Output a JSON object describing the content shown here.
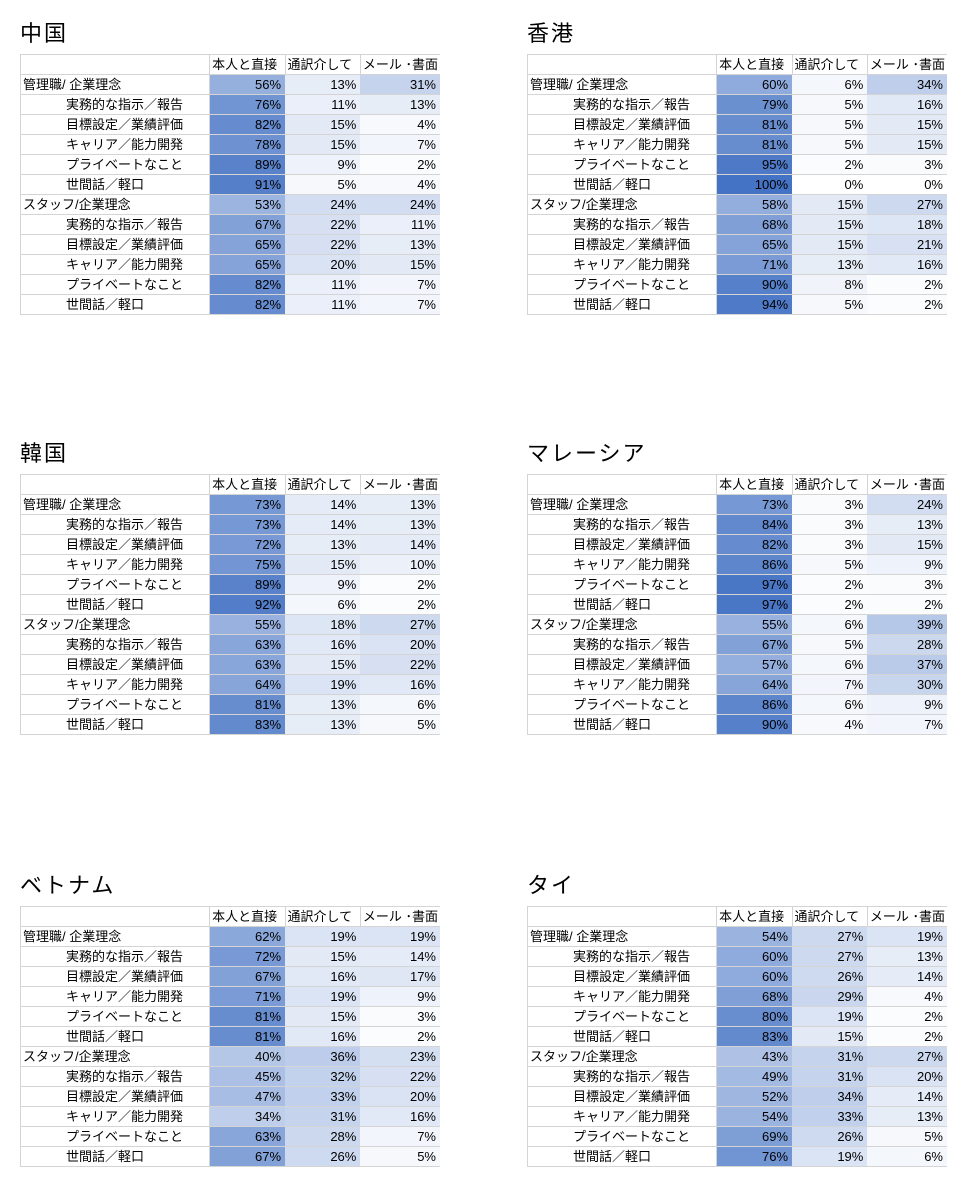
{
  "headers": [
    "",
    "本人と直接",
    "通訳介して",
    "メール ･書面"
  ],
  "colors": {
    "low": "#ffffff",
    "high": "#4472c4"
  },
  "chart_data": [
    {
      "type": "heatmap",
      "title": "中国",
      "rows": [
        {
          "label": "管理職/ 企業理念",
          "sub": false,
          "values": [
            56,
            13,
            31
          ]
        },
        {
          "label": "実務的な指示／報告",
          "sub": true,
          "values": [
            76,
            11,
            13
          ]
        },
        {
          "label": "目標設定／業績評価",
          "sub": true,
          "values": [
            82,
            15,
            4
          ]
        },
        {
          "label": "キャリア／能力開発",
          "sub": true,
          "values": [
            78,
            15,
            7
          ]
        },
        {
          "label": "プライベートなこと",
          "sub": true,
          "values": [
            89,
            9,
            2
          ]
        },
        {
          "label": "世間話／軽口",
          "sub": true,
          "values": [
            91,
            5,
            4
          ]
        },
        {
          "label": "スタッフ/企業理念",
          "sub": false,
          "values": [
            53,
            24,
            24
          ]
        },
        {
          "label": "実務的な指示／報告",
          "sub": true,
          "values": [
            67,
            22,
            11
          ]
        },
        {
          "label": "目標設定／業績評価",
          "sub": true,
          "values": [
            65,
            22,
            13
          ]
        },
        {
          "label": "キャリア／能力開発",
          "sub": true,
          "values": [
            65,
            20,
            15
          ]
        },
        {
          "label": "プライベートなこと",
          "sub": true,
          "values": [
            82,
            11,
            7
          ]
        },
        {
          "label": "世間話／軽口",
          "sub": true,
          "values": [
            82,
            11,
            7
          ]
        }
      ]
    },
    {
      "type": "heatmap",
      "title": "香港",
      "rows": [
        {
          "label": "管理職/ 企業理念",
          "sub": false,
          "values": [
            60,
            6,
            34
          ]
        },
        {
          "label": "実務的な指示／報告",
          "sub": true,
          "values": [
            79,
            5,
            16
          ]
        },
        {
          "label": "目標設定／業績評価",
          "sub": true,
          "values": [
            81,
            5,
            15
          ]
        },
        {
          "label": "キャリア／能力開発",
          "sub": true,
          "values": [
            81,
            5,
            15
          ]
        },
        {
          "label": "プライベートなこと",
          "sub": true,
          "values": [
            95,
            2,
            3
          ]
        },
        {
          "label": "世間話／軽口",
          "sub": true,
          "values": [
            100,
            0,
            0
          ]
        },
        {
          "label": "スタッフ/企業理念",
          "sub": false,
          "values": [
            58,
            15,
            27
          ]
        },
        {
          "label": "実務的な指示／報告",
          "sub": true,
          "values": [
            68,
            15,
            18
          ]
        },
        {
          "label": "目標設定／業績評価",
          "sub": true,
          "values": [
            65,
            15,
            21
          ]
        },
        {
          "label": "キャリア／能力開発",
          "sub": true,
          "values": [
            71,
            13,
            16
          ]
        },
        {
          "label": "プライベートなこと",
          "sub": true,
          "values": [
            90,
            8,
            2
          ]
        },
        {
          "label": "世間話／軽口",
          "sub": true,
          "values": [
            94,
            5,
            2
          ]
        }
      ]
    },
    {
      "type": "heatmap",
      "title": "韓国",
      "rows": [
        {
          "label": "管理職/ 企業理念",
          "sub": false,
          "values": [
            73,
            14,
            13
          ]
        },
        {
          "label": "実務的な指示／報告",
          "sub": true,
          "values": [
            73,
            14,
            13
          ]
        },
        {
          "label": "目標設定／業績評価",
          "sub": true,
          "values": [
            72,
            13,
            14
          ]
        },
        {
          "label": "キャリア／能力開発",
          "sub": true,
          "values": [
            75,
            15,
            10
          ]
        },
        {
          "label": "プライベートなこと",
          "sub": true,
          "values": [
            89,
            9,
            2
          ]
        },
        {
          "label": "世間話／軽口",
          "sub": true,
          "values": [
            92,
            6,
            2
          ]
        },
        {
          "label": "スタッフ/企業理念",
          "sub": false,
          "values": [
            55,
            18,
            27
          ]
        },
        {
          "label": "実務的な指示／報告",
          "sub": true,
          "values": [
            63,
            16,
            20
          ]
        },
        {
          "label": "目標設定／業績評価",
          "sub": true,
          "values": [
            63,
            15,
            22
          ]
        },
        {
          "label": "キャリア／能力開発",
          "sub": true,
          "values": [
            64,
            19,
            16
          ]
        },
        {
          "label": "プライベートなこと",
          "sub": true,
          "values": [
            81,
            13,
            6
          ]
        },
        {
          "label": "世間話／軽口",
          "sub": true,
          "values": [
            83,
            13,
            5
          ]
        }
      ]
    },
    {
      "type": "heatmap",
      "title": "マレーシア",
      "rows": [
        {
          "label": "管理職/ 企業理念",
          "sub": false,
          "values": [
            73,
            3,
            24
          ]
        },
        {
          "label": "実務的な指示／報告",
          "sub": true,
          "values": [
            84,
            3,
            13
          ]
        },
        {
          "label": "目標設定／業績評価",
          "sub": true,
          "values": [
            82,
            3,
            15
          ]
        },
        {
          "label": "キャリア／能力開発",
          "sub": true,
          "values": [
            86,
            5,
            9
          ]
        },
        {
          "label": "プライベートなこと",
          "sub": true,
          "values": [
            97,
            2,
            3
          ]
        },
        {
          "label": "世間話／軽口",
          "sub": true,
          "values": [
            97,
            2,
            2
          ]
        },
        {
          "label": "スタッフ/企業理念",
          "sub": false,
          "values": [
            55,
            6,
            39
          ]
        },
        {
          "label": "実務的な指示／報告",
          "sub": true,
          "values": [
            67,
            5,
            28
          ]
        },
        {
          "label": "目標設定／業績評価",
          "sub": true,
          "values": [
            57,
            6,
            37
          ]
        },
        {
          "label": "キャリア／能力開発",
          "sub": true,
          "values": [
            64,
            7,
            30
          ]
        },
        {
          "label": "プライベートなこと",
          "sub": true,
          "values": [
            86,
            6,
            9
          ]
        },
        {
          "label": "世間話／軽口",
          "sub": true,
          "values": [
            90,
            4,
            7
          ]
        }
      ]
    },
    {
      "type": "heatmap",
      "title": "ベトナム",
      "rows": [
        {
          "label": "管理職/ 企業理念",
          "sub": false,
          "values": [
            62,
            19,
            19
          ]
        },
        {
          "label": "実務的な指示／報告",
          "sub": true,
          "values": [
            72,
            15,
            14
          ]
        },
        {
          "label": "目標設定／業績評価",
          "sub": true,
          "values": [
            67,
            16,
            17
          ]
        },
        {
          "label": "キャリア／能力開発",
          "sub": true,
          "values": [
            71,
            19,
            9
          ]
        },
        {
          "label": "プライベートなこと",
          "sub": true,
          "values": [
            81,
            15,
            3
          ]
        },
        {
          "label": "世間話／軽口",
          "sub": true,
          "values": [
            81,
            16,
            2
          ]
        },
        {
          "label": "スタッフ/企業理念",
          "sub": false,
          "values": [
            40,
            36,
            23
          ]
        },
        {
          "label": "実務的な指示／報告",
          "sub": true,
          "values": [
            45,
            32,
            22
          ]
        },
        {
          "label": "目標設定／業績評価",
          "sub": true,
          "values": [
            47,
            33,
            20
          ]
        },
        {
          "label": "キャリア／能力開発",
          "sub": true,
          "values": [
            34,
            31,
            16
          ]
        },
        {
          "label": "プライベートなこと",
          "sub": true,
          "values": [
            63,
            28,
            7
          ]
        },
        {
          "label": "世間話／軽口",
          "sub": true,
          "values": [
            67,
            26,
            5
          ]
        }
      ]
    },
    {
      "type": "heatmap",
      "title": "タイ",
      "rows": [
        {
          "label": "管理職/ 企業理念",
          "sub": false,
          "values": [
            54,
            27,
            19
          ]
        },
        {
          "label": "実務的な指示／報告",
          "sub": true,
          "values": [
            60,
            27,
            13
          ]
        },
        {
          "label": "目標設定／業績評価",
          "sub": true,
          "values": [
            60,
            26,
            14
          ]
        },
        {
          "label": "キャリア／能力開発",
          "sub": true,
          "values": [
            68,
            29,
            4
          ]
        },
        {
          "label": "プライベートなこと",
          "sub": true,
          "values": [
            80,
            19,
            2
          ]
        },
        {
          "label": "世間話／軽口",
          "sub": true,
          "values": [
            83,
            15,
            2
          ]
        },
        {
          "label": "スタッフ/企業理念",
          "sub": false,
          "values": [
            43,
            31,
            27
          ]
        },
        {
          "label": "実務的な指示／報告",
          "sub": true,
          "values": [
            49,
            31,
            20
          ]
        },
        {
          "label": "目標設定／業績評価",
          "sub": true,
          "values": [
            52,
            34,
            14
          ]
        },
        {
          "label": "キャリア／能力開発",
          "sub": true,
          "values": [
            54,
            33,
            13
          ]
        },
        {
          "label": "プライベートなこと",
          "sub": true,
          "values": [
            69,
            26,
            5
          ]
        },
        {
          "label": "世間話／軽口",
          "sub": true,
          "values": [
            76,
            19,
            6
          ]
        }
      ]
    }
  ]
}
